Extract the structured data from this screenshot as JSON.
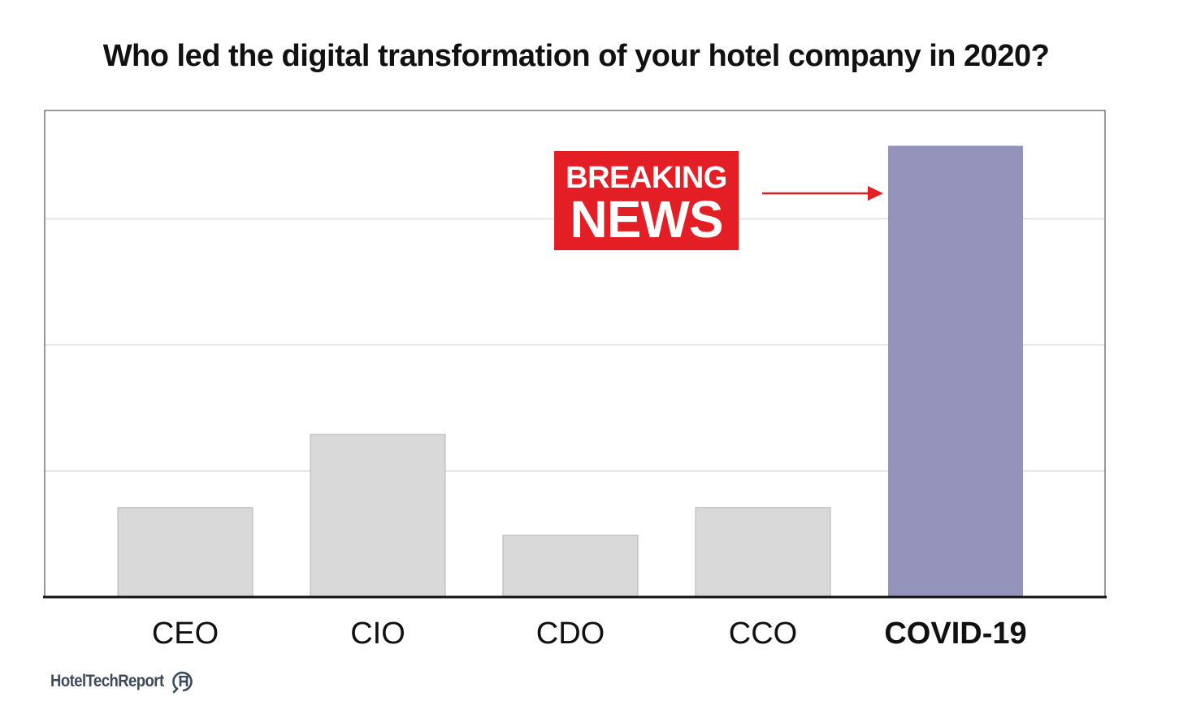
{
  "chart_data": {
    "type": "bar",
    "title": "Who led the digital transformation of your hotel company in 2020?",
    "categories": [
      "CEO",
      "CIO",
      "CDO",
      "CCO",
      "COVID-19"
    ],
    "values": [
      0.71,
      1.29,
      0.49,
      0.71,
      3.58
    ],
    "highlight_category": "COVID-19",
    "ylim": [
      0,
      3.86
    ],
    "grid": true,
    "bar_color": "#d9d9d9",
    "highlight_color": "#9493bb",
    "annotation": {
      "line1": "BREAKING",
      "line2": "NEWS",
      "color": "#e31e24",
      "points_to": "COVID-19"
    }
  },
  "footer": {
    "brand": "HotelTechReport",
    "logo_icon": "hoteltechreport-logo-icon"
  }
}
